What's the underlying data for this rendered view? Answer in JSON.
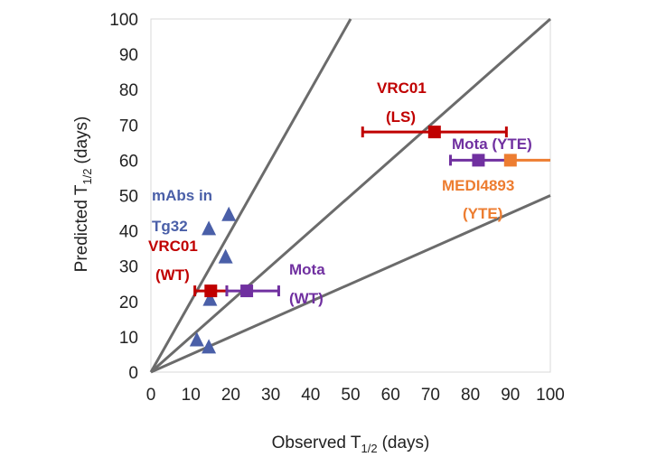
{
  "chart_data": {
    "type": "scatter",
    "title": "",
    "xlabel": {
      "main": "Observed T",
      "sub": "1/2",
      "unit": "(days)"
    },
    "ylabel": {
      "main": "Predicted T",
      "sub": "1/2",
      "unit": "(days)"
    },
    "xlim": [
      0,
      100
    ],
    "ylim": [
      0,
      100
    ],
    "x_ticks": [
      "0",
      "10",
      "20",
      "30",
      "40",
      "50",
      "60",
      "70",
      "80",
      "90",
      "100"
    ],
    "y_ticks": [
      "0",
      "10",
      "20",
      "30",
      "40",
      "50",
      "60",
      "70",
      "80",
      "90",
      "100"
    ],
    "grid": false,
    "reference_lines": [
      {
        "name": "ratio-2x",
        "slope": 2
      },
      {
        "name": "ratio-1x",
        "slope": 1
      },
      {
        "name": "ratio-0.5x",
        "slope": 0.5
      }
    ],
    "series": [
      {
        "name": "mAbs in Tg32",
        "marker": "triangle",
        "color": "#4a5fa8",
        "points": [
          [
            14.5,
            40.5
          ],
          [
            19.5,
            44.5
          ],
          [
            18.7,
            32.5
          ],
          [
            14.8,
            20.5
          ],
          [
            11.5,
            9
          ],
          [
            14.5,
            7
          ]
        ]
      },
      {
        "name": "VRC01 (WT)",
        "marker": "square",
        "color": "#c00000",
        "points": [
          [
            15,
            23
          ]
        ],
        "x_error": [
          [
            11,
            19
          ]
        ]
      },
      {
        "name": "Mota (WT)",
        "marker": "square",
        "color": "#7030a0",
        "points": [
          [
            24,
            23
          ]
        ],
        "x_error": [
          [
            19,
            32
          ]
        ]
      },
      {
        "name": "VRC01 (LS)",
        "marker": "square",
        "color": "#c00000",
        "points": [
          [
            71,
            68
          ]
        ],
        "x_error": [
          [
            53,
            89
          ]
        ]
      },
      {
        "name": "Mota (YTE)",
        "marker": "square",
        "color": "#7030a0",
        "points": [
          [
            82,
            60
          ]
        ],
        "x_error": [
          [
            75,
            89
          ]
        ]
      },
      {
        "name": "MEDI4893 (YTE)",
        "marker": "square",
        "color": "#ed7d31",
        "points": [
          [
            90,
            60
          ]
        ],
        "x_error": [
          [
            89,
            100
          ]
        ]
      }
    ],
    "annotations": [
      {
        "lines": [
          "mAbs in",
          "Tg32"
        ],
        "color": "#4a5fa8"
      },
      {
        "lines": [
          "VRC01",
          "(WT)"
        ],
        "color": "#c00000"
      },
      {
        "lines": [
          "Mota",
          "(WT)"
        ],
        "color": "#7030a0"
      },
      {
        "lines": [
          "VRC01",
          "(LS)"
        ],
        "color": "#c00000"
      },
      {
        "lines": [
          "Mota (YTE)"
        ],
        "color": "#7030a0"
      },
      {
        "lines": [
          "MEDI4893",
          "(YTE)"
        ],
        "color": "#ed7d31"
      }
    ]
  }
}
